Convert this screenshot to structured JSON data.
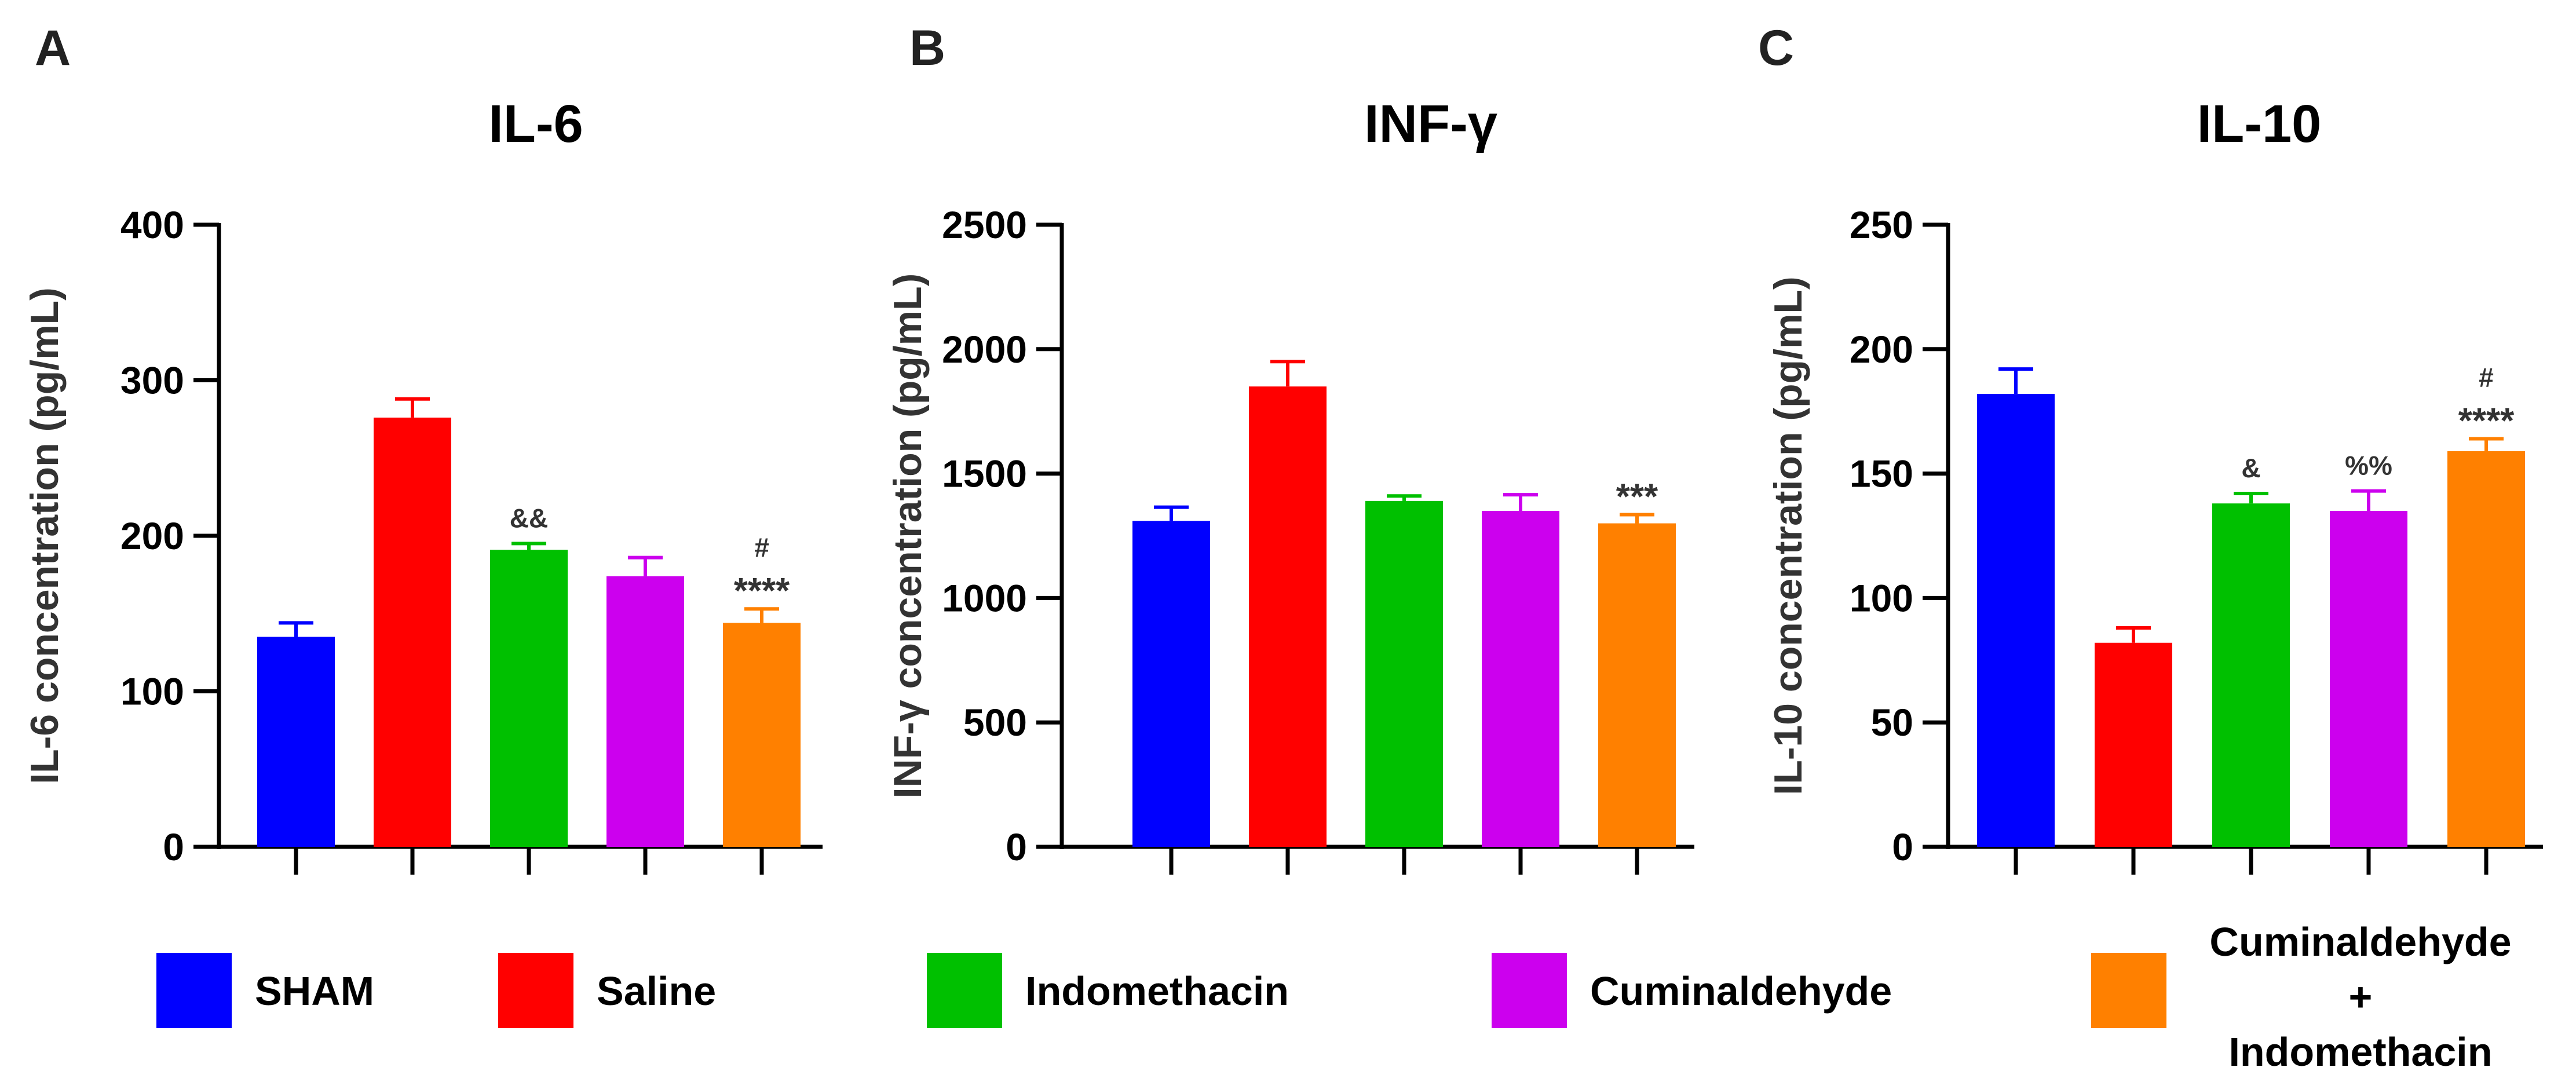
{
  "chart_data": [
    {
      "type": "bar",
      "panel": "A",
      "title": "IL-6",
      "ylabel": "IL-6 concentration (pg/mL)",
      "ylim": [
        0,
        400
      ],
      "yticks": [
        0,
        100,
        200,
        300,
        400
      ],
      "categories": [
        "SHAM",
        "Saline",
        "Indomethacin",
        "Cuminaldehyde",
        "Cuminaldehyde + Indomethacin"
      ],
      "values": [
        135,
        276,
        191,
        174,
        144
      ],
      "errors": [
        9,
        12,
        4,
        12,
        9
      ],
      "annotations": [
        "",
        "",
        "&&",
        "",
        "#\n****"
      ]
    },
    {
      "type": "bar",
      "panel": "B",
      "title": "INF-γ",
      "ylabel": "INF-γ concentration (pg/mL)",
      "ylim": [
        0,
        2500
      ],
      "yticks": [
        0,
        500,
        1000,
        1500,
        2000,
        2500
      ],
      "categories": [
        "SHAM",
        "Saline",
        "Indomethacin",
        "Cuminaldehyde",
        "Cuminaldehyde + Indomethacin"
      ],
      "values": [
        1310,
        1850,
        1390,
        1350,
        1300
      ],
      "errors": [
        55,
        100,
        20,
        65,
        35
      ],
      "annotations": [
        "",
        "",
        "",
        "",
        "***"
      ]
    },
    {
      "type": "bar",
      "panel": "C",
      "title": "IL-10",
      "ylabel": "IL-10 concentration (pg/mL)",
      "ylim": [
        0,
        250
      ],
      "yticks": [
        0,
        50,
        100,
        150,
        200,
        250
      ],
      "categories": [
        "SHAM",
        "Saline",
        "Indomethacin",
        "Cuminaldehyde",
        "Cuminaldehyde + Indomethacin"
      ],
      "values": [
        182,
        82,
        138,
        135,
        159
      ],
      "errors": [
        10,
        6,
        4,
        8,
        5
      ],
      "annotations": [
        "",
        "",
        "&",
        "%%",
        "#\n****"
      ]
    }
  ],
  "legend": {
    "entries": [
      {
        "label": "SHAM",
        "color": "#0000ff"
      },
      {
        "label": "Saline",
        "color": "#ff0000"
      },
      {
        "label": "Indomethacin",
        "color": "#00c000"
      },
      {
        "label": "Cuminaldehyde",
        "color": "#cc00ee"
      },
      {
        "label": "Cuminaldehyde\n+\nIndomethacin",
        "color": "#ff8000"
      }
    ]
  }
}
